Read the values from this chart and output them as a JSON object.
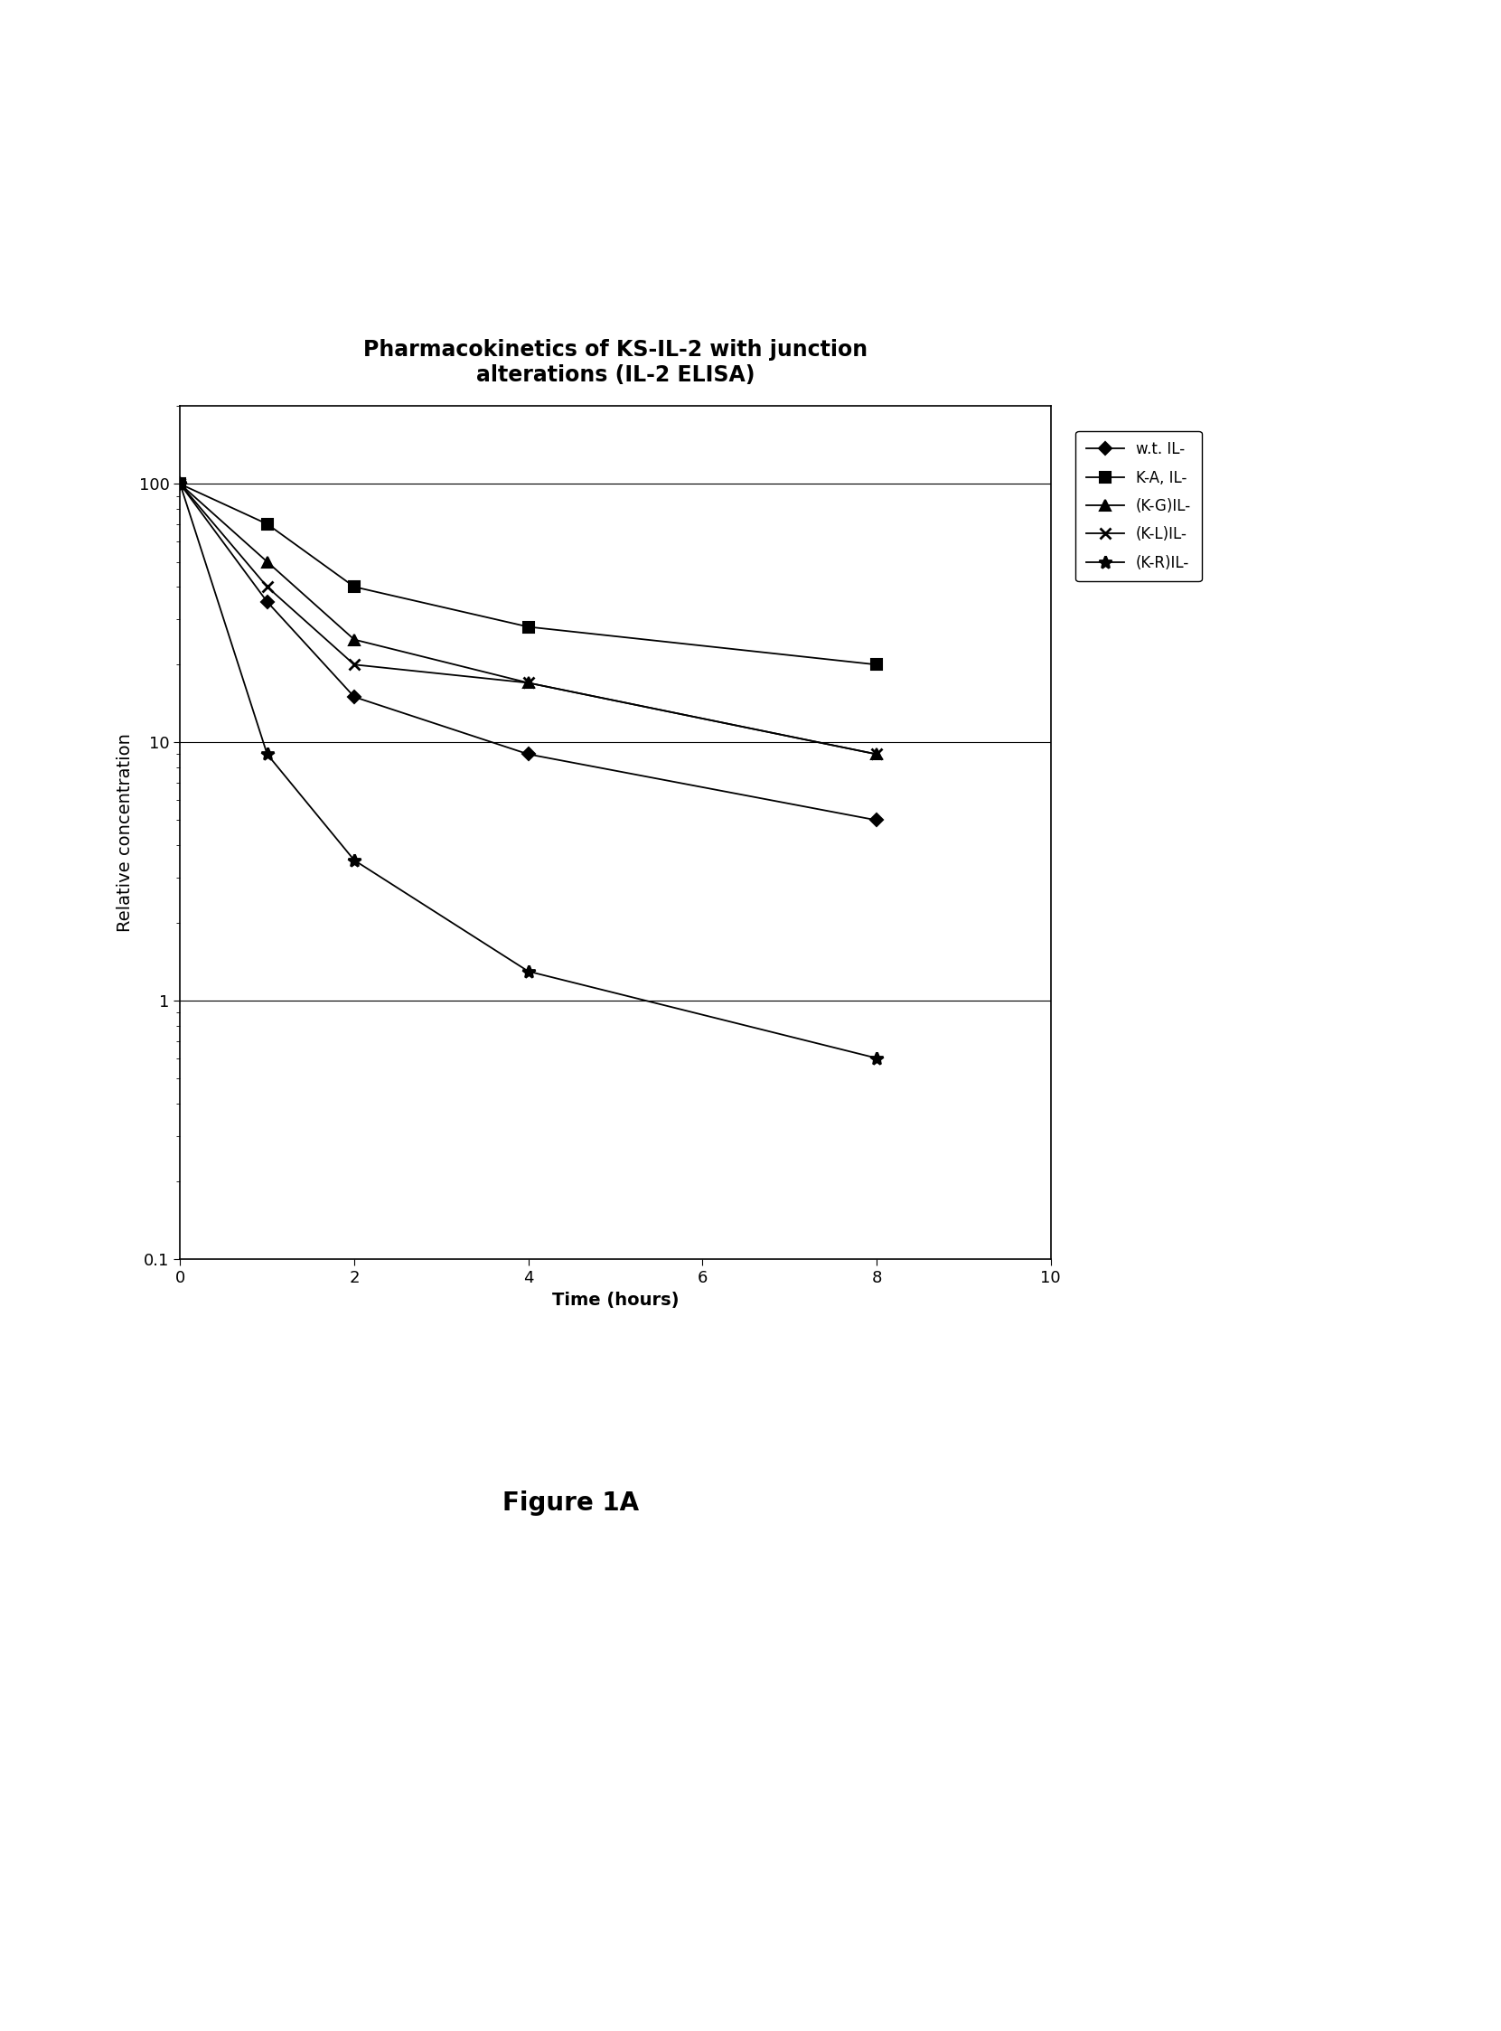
{
  "title": "Pharmacokinetics of KS-IL-2 with junction\nalterations (IL-2 ELISA)",
  "xlabel": "Time (hours)",
  "ylabel": "Relative concentration",
  "series": [
    {
      "label": "w.t. IL-",
      "x": [
        0,
        1,
        2,
        4,
        8
      ],
      "y": [
        100,
        35,
        15,
        9,
        5
      ],
      "marker": "D",
      "color": "black",
      "linestyle": "-",
      "markersize": 7
    },
    {
      "label": "K-A, IL-",
      "x": [
        0,
        1,
        2,
        4,
        8
      ],
      "y": [
        100,
        70,
        40,
        28,
        20
      ],
      "marker": "s",
      "color": "black",
      "linestyle": "-",
      "markersize": 8
    },
    {
      "label": "(K-G)IL-",
      "x": [
        0,
        1,
        2,
        4,
        8
      ],
      "y": [
        100,
        50,
        25,
        17,
        9
      ],
      "marker": "^",
      "color": "black",
      "linestyle": "-",
      "markersize": 8
    },
    {
      "label": "(K-L)IL-",
      "x": [
        0,
        1,
        2,
        4,
        8
      ],
      "y": [
        100,
        40,
        20,
        17,
        9
      ],
      "marker": "x",
      "color": "black",
      "linestyle": "-",
      "markersize": 9
    },
    {
      "label": "(K-R)IL-",
      "x": [
        0,
        1,
        2,
        4,
        8
      ],
      "y": [
        100,
        9,
        3.5,
        1.3,
        0.6
      ],
      "marker": "*",
      "color": "black",
      "linestyle": "-",
      "markersize": 10
    }
  ],
  "xlim": [
    0,
    10
  ],
  "ylim": [
    0.1,
    200
  ],
  "xticks": [
    0,
    2,
    4,
    6,
    8,
    10
  ],
  "ytick_labels": {
    "0.1": "0.1",
    "1": "1",
    "10": "10",
    "100": "100"
  },
  "figure_caption": "Figure 1A",
  "background_color": "#ffffff",
  "title_fontsize": 17,
  "label_fontsize": 14,
  "tick_fontsize": 13,
  "legend_fontsize": 12
}
